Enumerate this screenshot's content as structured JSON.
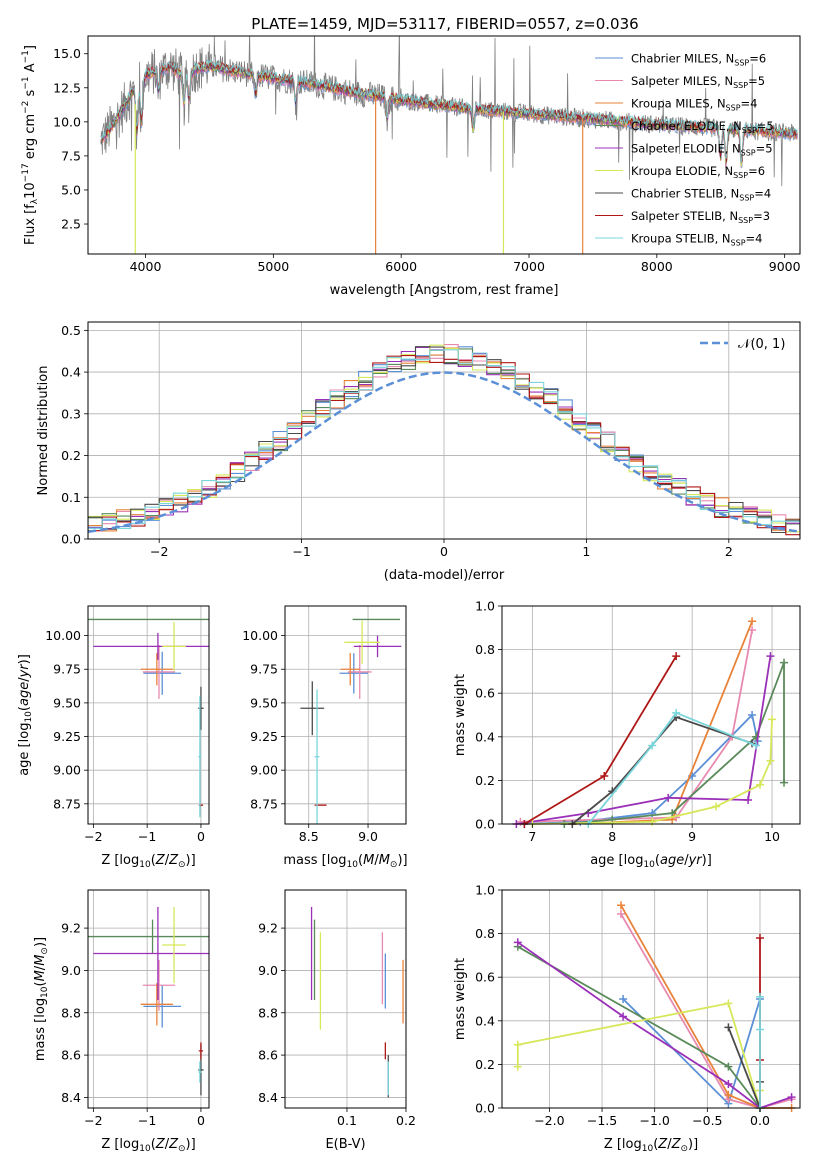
{
  "colors": {
    "grid": "#b0b0b0",
    "spectrum_data": "#7f7f7f",
    "gaussian": "#5b8fd6"
  },
  "series": [
    {
      "name": "Chabrier MILES",
      "nssp": "6",
      "color": "#5b8fd6"
    },
    {
      "name": "Salpeter MILES",
      "nssp": "5",
      "color": "#e88ab0"
    },
    {
      "name": "Kroupa MILES",
      "nssp": "4",
      "color": "#e8833a"
    },
    {
      "name": "Chabrier ELODIE",
      "nssp": "5",
      "color": "#5a8a5a"
    },
    {
      "name": "Salpeter ELODIE",
      "nssp": "5",
      "color": "#9b30b8"
    },
    {
      "name": "Kroupa ELODIE",
      "nssp": "6",
      "color": "#d6e85a"
    },
    {
      "name": "Chabrier STELIB",
      "nssp": "4",
      "color": "#4a4a4a"
    },
    {
      "name": "Salpeter STELIB",
      "nssp": "3",
      "color": "#b01818"
    },
    {
      "name": "Kroupa STELIB",
      "nssp": "4",
      "color": "#7ad6dc"
    }
  ],
  "chart_data": [
    {
      "id": "spectrum",
      "type": "line",
      "title": "PLATE=1459, MJD=53117, FIBERID=0557, z=0.036",
      "xlabel": "wavelength [Angstrom, rest frame]",
      "ylabel": "Flux [f_λ 10^-17 erg cm^-2 s^-1 A^-1]",
      "xlim": [
        3550,
        9120
      ],
      "ylim": [
        0.3,
        16.3
      ],
      "xticks": [
        4000,
        5000,
        6000,
        7000,
        8000,
        9000
      ],
      "yticks": [
        2.5,
        5.0,
        7.5,
        10.0,
        12.5,
        15.0
      ],
      "legend_loc": "upper right",
      "continuum": {
        "x": [
          3650,
          3700,
          3800,
          3900,
          4000,
          4100,
          4200,
          4300,
          4400,
          4500,
          4700,
          5000,
          5300,
          5600,
          6000,
          6500,
          7000,
          7500,
          8000,
          8500,
          9000,
          9100
        ],
        "y": [
          8.6,
          9.2,
          10.6,
          12.3,
          13.4,
          13.8,
          14.0,
          13.3,
          13.9,
          14.1,
          13.7,
          13.2,
          12.8,
          12.2,
          11.6,
          11.0,
          10.6,
          10.2,
          9.8,
          9.5,
          9.2,
          9.1
        ]
      },
      "absorption_lines": [
        {
          "x": 3933,
          "depth": 3.5
        },
        {
          "x": 3968,
          "depth": 3.0
        },
        {
          "x": 4101,
          "depth": 1.5
        },
        {
          "x": 4300,
          "depth": 2.0
        },
        {
          "x": 4340,
          "depth": 2.0
        },
        {
          "x": 4861,
          "depth": 1.5
        },
        {
          "x": 5175,
          "depth": 1.5
        },
        {
          "x": 5890,
          "depth": 1.5
        },
        {
          "x": 6563,
          "depth": 1.5
        },
        {
          "x": 8498,
          "depth": 2.0
        },
        {
          "x": 8542,
          "depth": 2.5
        },
        {
          "x": 8662,
          "depth": 2.5
        }
      ],
      "spikes": [
        {
          "x": 3920,
          "y": 0.3,
          "series": 5
        },
        {
          "x": 5800,
          "y": 0.3,
          "series": 2
        },
        {
          "x": 6800,
          "y": 0.3,
          "series": 5
        },
        {
          "x": 7420,
          "y": 0.3,
          "series": 2
        }
      ]
    },
    {
      "id": "residuals",
      "type": "step",
      "xlabel": "(data-model)/error",
      "ylabel": "Normed distribution",
      "xlim": [
        -2.5,
        2.5
      ],
      "ylim": [
        0,
        0.52
      ],
      "xticks": [
        -2,
        -1,
        0,
        1,
        2
      ],
      "yticks": [
        0.0,
        0.1,
        0.2,
        0.3,
        0.4,
        0.5
      ],
      "bin_width": 0.1,
      "reference_label": "N(0,1)",
      "legend_loc": "upper right"
    },
    {
      "id": "age-vs-Z",
      "type": "scatter",
      "xlabel": "Z [log10(Z/Z⊙)]",
      "ylabel": "age  [log10(age/yr)]",
      "xlim": [
        -2.1,
        0.15
      ],
      "ylim": [
        8.6,
        10.22
      ],
      "xticks": [
        -2,
        -1,
        0
      ],
      "yticks": [
        8.75,
        9.0,
        9.25,
        9.5,
        9.75,
        10.0
      ],
      "points": [
        {
          "x": -0.72,
          "y": 9.72,
          "xerr": 0.35,
          "yerr": 0.16,
          "series": 0
        },
        {
          "x": -0.78,
          "y": 9.73,
          "xerr": 0.3,
          "yerr": 0.2,
          "series": 1
        },
        {
          "x": -0.82,
          "y": 9.75,
          "xerr": 0.3,
          "yerr": 0.12,
          "series": 2
        },
        {
          "x": -0.9,
          "y": 10.12,
          "xerr": 1.2,
          "yerr": 0.0,
          "series": 3
        },
        {
          "x": -0.8,
          "y": 9.92,
          "xerr": 1.2,
          "yerr": 0.1,
          "series": 4
        },
        {
          "x": -0.5,
          "y": 9.92,
          "xerr": 0.22,
          "yerr": 0.18,
          "series": 5
        },
        {
          "x": 0.0,
          "y": 9.46,
          "xerr": 0.05,
          "yerr": 0.16,
          "series": 6
        },
        {
          "x": 0.0,
          "y": 8.74,
          "xerr": 0.04,
          "yerr": 0.0,
          "series": 7
        },
        {
          "x": -0.02,
          "y": 9.1,
          "xerr": 0.03,
          "yerr": 0.45,
          "series": 8
        }
      ]
    },
    {
      "id": "age-vs-mass",
      "type": "scatter",
      "xlabel": "mass [log10(M/M⊙)]",
      "ylabel": "",
      "xlim": [
        8.3,
        9.32
      ],
      "ylim": [
        8.6,
        10.22
      ],
      "xticks": [
        8.5,
        9.0
      ],
      "yticks": [
        8.75,
        9.0,
        9.25,
        9.5,
        9.75,
        10.0
      ],
      "points": [
        {
          "x": 8.88,
          "y": 9.72,
          "xerr": 0.12,
          "yerr": 0.15,
          "series": 0
        },
        {
          "x": 8.93,
          "y": 9.73,
          "xerr": 0.1,
          "yerr": 0.2,
          "series": 1
        },
        {
          "x": 8.85,
          "y": 9.75,
          "xerr": 0.08,
          "yerr": 0.12,
          "series": 2
        },
        {
          "x": 9.07,
          "y": 10.12,
          "xerr": 0.2,
          "yerr": 0.0,
          "series": 3
        },
        {
          "x": 9.08,
          "y": 9.92,
          "xerr": 0.2,
          "yerr": 0.08,
          "series": 4
        },
        {
          "x": 8.95,
          "y": 9.95,
          "xerr": 0.15,
          "yerr": 0.16,
          "series": 5
        },
        {
          "x": 8.53,
          "y": 9.46,
          "xerr": 0.1,
          "yerr": 0.2,
          "series": 6
        },
        {
          "x": 8.6,
          "y": 8.74,
          "xerr": 0.05,
          "yerr": 0.0,
          "series": 7
        },
        {
          "x": 8.57,
          "y": 9.1,
          "xerr": 0.02,
          "yerr": 0.5,
          "series": 8
        }
      ]
    },
    {
      "id": "weight-vs-age",
      "type": "line",
      "xlabel": "age  [log10(age/yr)]",
      "ylabel": "mass weight",
      "xlim": [
        6.62,
        10.35
      ],
      "ylim": [
        0,
        1.0
      ],
      "xticks": [
        7,
        8,
        9,
        10
      ],
      "yticks": [
        0.0,
        0.2,
        0.4,
        0.6,
        0.8,
        1.0
      ],
      "lines": [
        {
          "series": 0,
          "x": [
            6.9,
            7.6,
            8.5,
            9.0,
            9.75,
            9.82
          ],
          "y": [
            0.0,
            0.01,
            0.05,
            0.22,
            0.5,
            0.38
          ]
        },
        {
          "series": 1,
          "x": [
            6.85,
            8.8,
            9.5,
            9.75
          ],
          "y": [
            0.01,
            0.03,
            0.4,
            0.89
          ]
        },
        {
          "series": 2,
          "x": [
            7.5,
            8.75,
            9.75
          ],
          "y": [
            0.0,
            0.02,
            0.93
          ]
        },
        {
          "series": 3,
          "x": [
            7.4,
            8.0,
            8.75,
            9.8,
            10.15,
            10.15
          ],
          "y": [
            0.0,
            0.02,
            0.05,
            0.4,
            0.74,
            0.19
          ]
        },
        {
          "series": 4,
          "x": [
            6.8,
            7.7,
            8.7,
            9.7,
            9.98
          ],
          "y": [
            0.0,
            0.05,
            0.12,
            0.11,
            0.77
          ]
        },
        {
          "series": 5,
          "x": [
            7.0,
            8.5,
            9.3,
            9.85,
            9.98,
            10.0
          ],
          "y": [
            0.0,
            0.01,
            0.08,
            0.18,
            0.29,
            0.48
          ]
        },
        {
          "series": 6,
          "x": [
            7.5,
            8.0,
            8.8,
            9.75
          ],
          "y": [
            0.0,
            0.15,
            0.49,
            0.37
          ]
        },
        {
          "series": 7,
          "x": [
            6.9,
            7.9,
            8.8
          ],
          "y": [
            0.0,
            0.22,
            0.77
          ]
        },
        {
          "series": 8,
          "x": [
            7.7,
            8.5,
            8.8,
            9.8
          ],
          "y": [
            0.0,
            0.36,
            0.51,
            0.36
          ]
        }
      ]
    },
    {
      "id": "mass-vs-Z",
      "type": "scatter",
      "xlabel": "Z [log10(Z/Z⊙)]",
      "ylabel": "mass [log10(M/M⊙)]",
      "xlim": [
        -2.1,
        0.15
      ],
      "ylim": [
        8.35,
        9.38
      ],
      "xticks": [
        -2,
        -1,
        0
      ],
      "yticks": [
        8.4,
        8.6,
        8.8,
        9.0,
        9.2
      ],
      "points": [
        {
          "x": -0.72,
          "y": 8.83,
          "xerr": 0.35,
          "yerr": 0.1,
          "series": 0
        },
        {
          "x": -0.78,
          "y": 8.93,
          "xerr": 0.3,
          "yerr": 0.12,
          "series": 1
        },
        {
          "x": -0.82,
          "y": 8.84,
          "xerr": 0.3,
          "yerr": 0.1,
          "series": 2
        },
        {
          "x": -0.9,
          "y": 9.16,
          "xerr": 1.2,
          "yerr": 0.08,
          "series": 3
        },
        {
          "x": -0.8,
          "y": 9.08,
          "xerr": 1.2,
          "yerr": 0.22,
          "series": 4
        },
        {
          "x": -0.5,
          "y": 9.12,
          "xerr": 0.22,
          "yerr": 0.18,
          "series": 5
        },
        {
          "x": 0.0,
          "y": 8.53,
          "xerr": 0.05,
          "yerr": 0.12,
          "series": 6
        },
        {
          "x": 0.0,
          "y": 8.62,
          "xerr": 0.04,
          "yerr": 0.04,
          "series": 7
        },
        {
          "x": -0.02,
          "y": 8.52,
          "xerr": 0.03,
          "yerr": 0.05,
          "series": 8
        }
      ]
    },
    {
      "id": "mass-vs-ebv",
      "type": "scatter",
      "xlabel": "E(B-V)",
      "ylabel": "",
      "xlim": [
        -0.005,
        0.2
      ],
      "ylim": [
        8.35,
        9.38
      ],
      "xticks": [
        0.1,
        0.2
      ],
      "yticks": [
        8.4,
        8.6,
        8.8,
        9.0,
        9.2
      ],
      "points": [
        {
          "x": 0.165,
          "y": 8.95,
          "yerr": 0.13,
          "series": 0
        },
        {
          "x": 0.16,
          "y": 9.01,
          "yerr": 0.17,
          "series": 1
        },
        {
          "x": 0.195,
          "y": 8.9,
          "yerr": 0.15,
          "series": 2
        },
        {
          "x": 0.045,
          "y": 9.05,
          "yerr": 0.19,
          "series": 3
        },
        {
          "x": 0.04,
          "y": 9.08,
          "yerr": 0.22,
          "series": 4
        },
        {
          "x": 0.055,
          "y": 8.95,
          "yerr": 0.23,
          "series": 5
        },
        {
          "x": 0.17,
          "y": 8.5,
          "yerr": 0.1,
          "series": 6
        },
        {
          "x": 0.165,
          "y": 8.62,
          "yerr": 0.04,
          "series": 7
        },
        {
          "x": 0.17,
          "y": 8.49,
          "yerr": 0.08,
          "series": 8
        }
      ]
    },
    {
      "id": "weight-vs-Z",
      "type": "line",
      "xlabel": "Z [log10(Z/Z⊙)]",
      "ylabel": "mass weight",
      "xlim": [
        -2.45,
        0.38
      ],
      "ylim": [
        0,
        1.0
      ],
      "xticks": [
        -2.0,
        -1.5,
        -1.0,
        -0.5,
        0.0
      ],
      "yticks": [
        0.0,
        0.2,
        0.4,
        0.6,
        0.8,
        1.0
      ],
      "lines": [
        {
          "series": 0,
          "x": [
            -1.3,
            -0.3,
            0.0,
            0.0
          ],
          "y": [
            0.5,
            0.02,
            0.5,
            0.0
          ]
        },
        {
          "series": 1,
          "x": [
            -1.32,
            -0.3,
            0.0,
            0.3
          ],
          "y": [
            0.89,
            0.04,
            0.0,
            0.04
          ]
        },
        {
          "series": 2,
          "x": [
            -1.32,
            -0.3,
            0.0,
            0.3
          ],
          "y": [
            0.93,
            0.06,
            0.0,
            0.0
          ]
        },
        {
          "series": 3,
          "x": [
            -2.3,
            -0.3,
            0.0
          ],
          "y": [
            0.74,
            0.19,
            0.0
          ]
        },
        {
          "series": 4,
          "x": [
            -2.3,
            -1.3,
            -0.3,
            0.0,
            0.3
          ],
          "y": [
            0.76,
            0.42,
            0.11,
            0.0,
            0.05
          ]
        },
        {
          "series": 5,
          "x": [
            -2.3,
            -2.3,
            -0.3,
            0.0,
            0.0
          ],
          "y": [
            0.19,
            0.29,
            0.48,
            0.0,
            0.08
          ]
        },
        {
          "series": 6,
          "x": [
            -0.3,
            0.0,
            0.0
          ],
          "y": [
            0.37,
            0.0,
            0.12
          ]
        },
        {
          "series": 7,
          "x": [
            0.0,
            0.0,
            0.0
          ],
          "y": [
            0.78,
            0.22,
            0.0
          ]
        },
        {
          "series": 8,
          "x": [
            0.0,
            0.0,
            0.0
          ],
          "y": [
            0.51,
            0.36,
            0.0
          ]
        }
      ]
    }
  ]
}
